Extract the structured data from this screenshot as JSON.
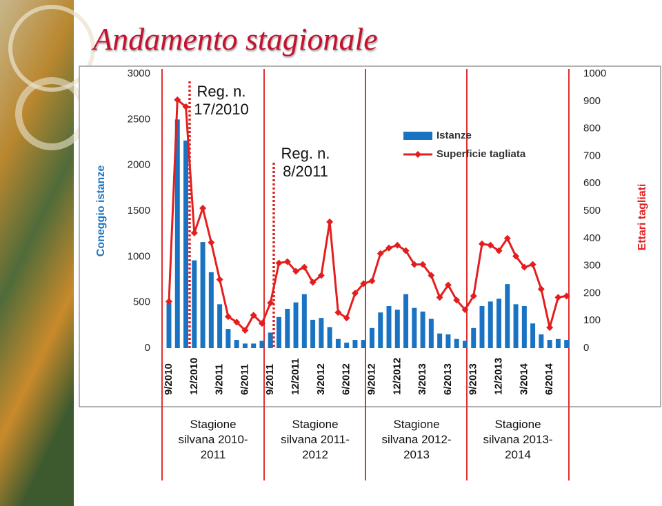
{
  "chart_data": {
    "type": "combo",
    "title": "Andamento stagionale",
    "y_label": "Coneggio istanze",
    "y2_label": "Ettari tagliati",
    "categories": [
      "9/2010",
      null,
      null,
      "12/2010",
      null,
      null,
      "3/2011",
      null,
      null,
      "6/2011",
      null,
      null,
      "9/2011",
      null,
      null,
      "12/2011",
      null,
      null,
      "3/2012",
      null,
      null,
      "6/2012",
      null,
      null,
      "9/2012",
      null,
      null,
      "12/2012",
      null,
      null,
      "3/2013",
      null,
      null,
      "6/2013",
      null,
      null,
      "9/2013",
      null,
      null,
      "12/2013",
      null,
      null,
      "3/2014",
      null,
      null,
      "6/2014",
      null,
      null
    ],
    "series": [
      {
        "name": "Istanze",
        "type": "bar",
        "color": "#1a73c2",
        "values": [
          490,
          2500,
          2270,
          960,
          1160,
          830,
          480,
          210,
          90,
          50,
          50,
          80,
          170,
          340,
          430,
          500,
          590,
          310,
          330,
          230,
          100,
          60,
          90,
          90,
          220,
          390,
          460,
          420,
          590,
          440,
          400,
          320,
          160,
          150,
          100,
          80,
          220,
          460,
          510,
          540,
          700,
          480,
          460,
          270,
          150,
          90,
          100,
          90
        ]
      },
      {
        "name": "Superficie tagliata",
        "type": "line",
        "axis": "y2",
        "color": "#e41e1e",
        "values": [
          170,
          905,
          880,
          420,
          510,
          385,
          250,
          115,
          95,
          65,
          120,
          90,
          165,
          310,
          315,
          280,
          295,
          240,
          265,
          460,
          130,
          110,
          200,
          235,
          245,
          345,
          365,
          375,
          355,
          305,
          305,
          265,
          185,
          230,
          175,
          140,
          190,
          380,
          375,
          355,
          400,
          335,
          295,
          305,
          215,
          75,
          185,
          190
        ]
      }
    ],
    "ylim": [
      0,
      3000
    ],
    "yticks": [
      0,
      500,
      1000,
      1500,
      2000,
      2500,
      3000
    ],
    "y2lim": [
      0,
      1000
    ],
    "y2ticks": [
      0,
      100,
      200,
      300,
      400,
      500,
      600,
      700,
      800,
      900,
      1000
    ],
    "grid": false,
    "legend": "top-right",
    "annotations": [
      "Reg. n. 17/2010",
      "Reg. n. 8/2011"
    ],
    "seasons": [
      "Stagione silvana 2010-2011",
      "Stagione silvana 2011-2012",
      "Stagione silvana 2012-2013",
      "Stagione silvana 2013-2014"
    ]
  }
}
